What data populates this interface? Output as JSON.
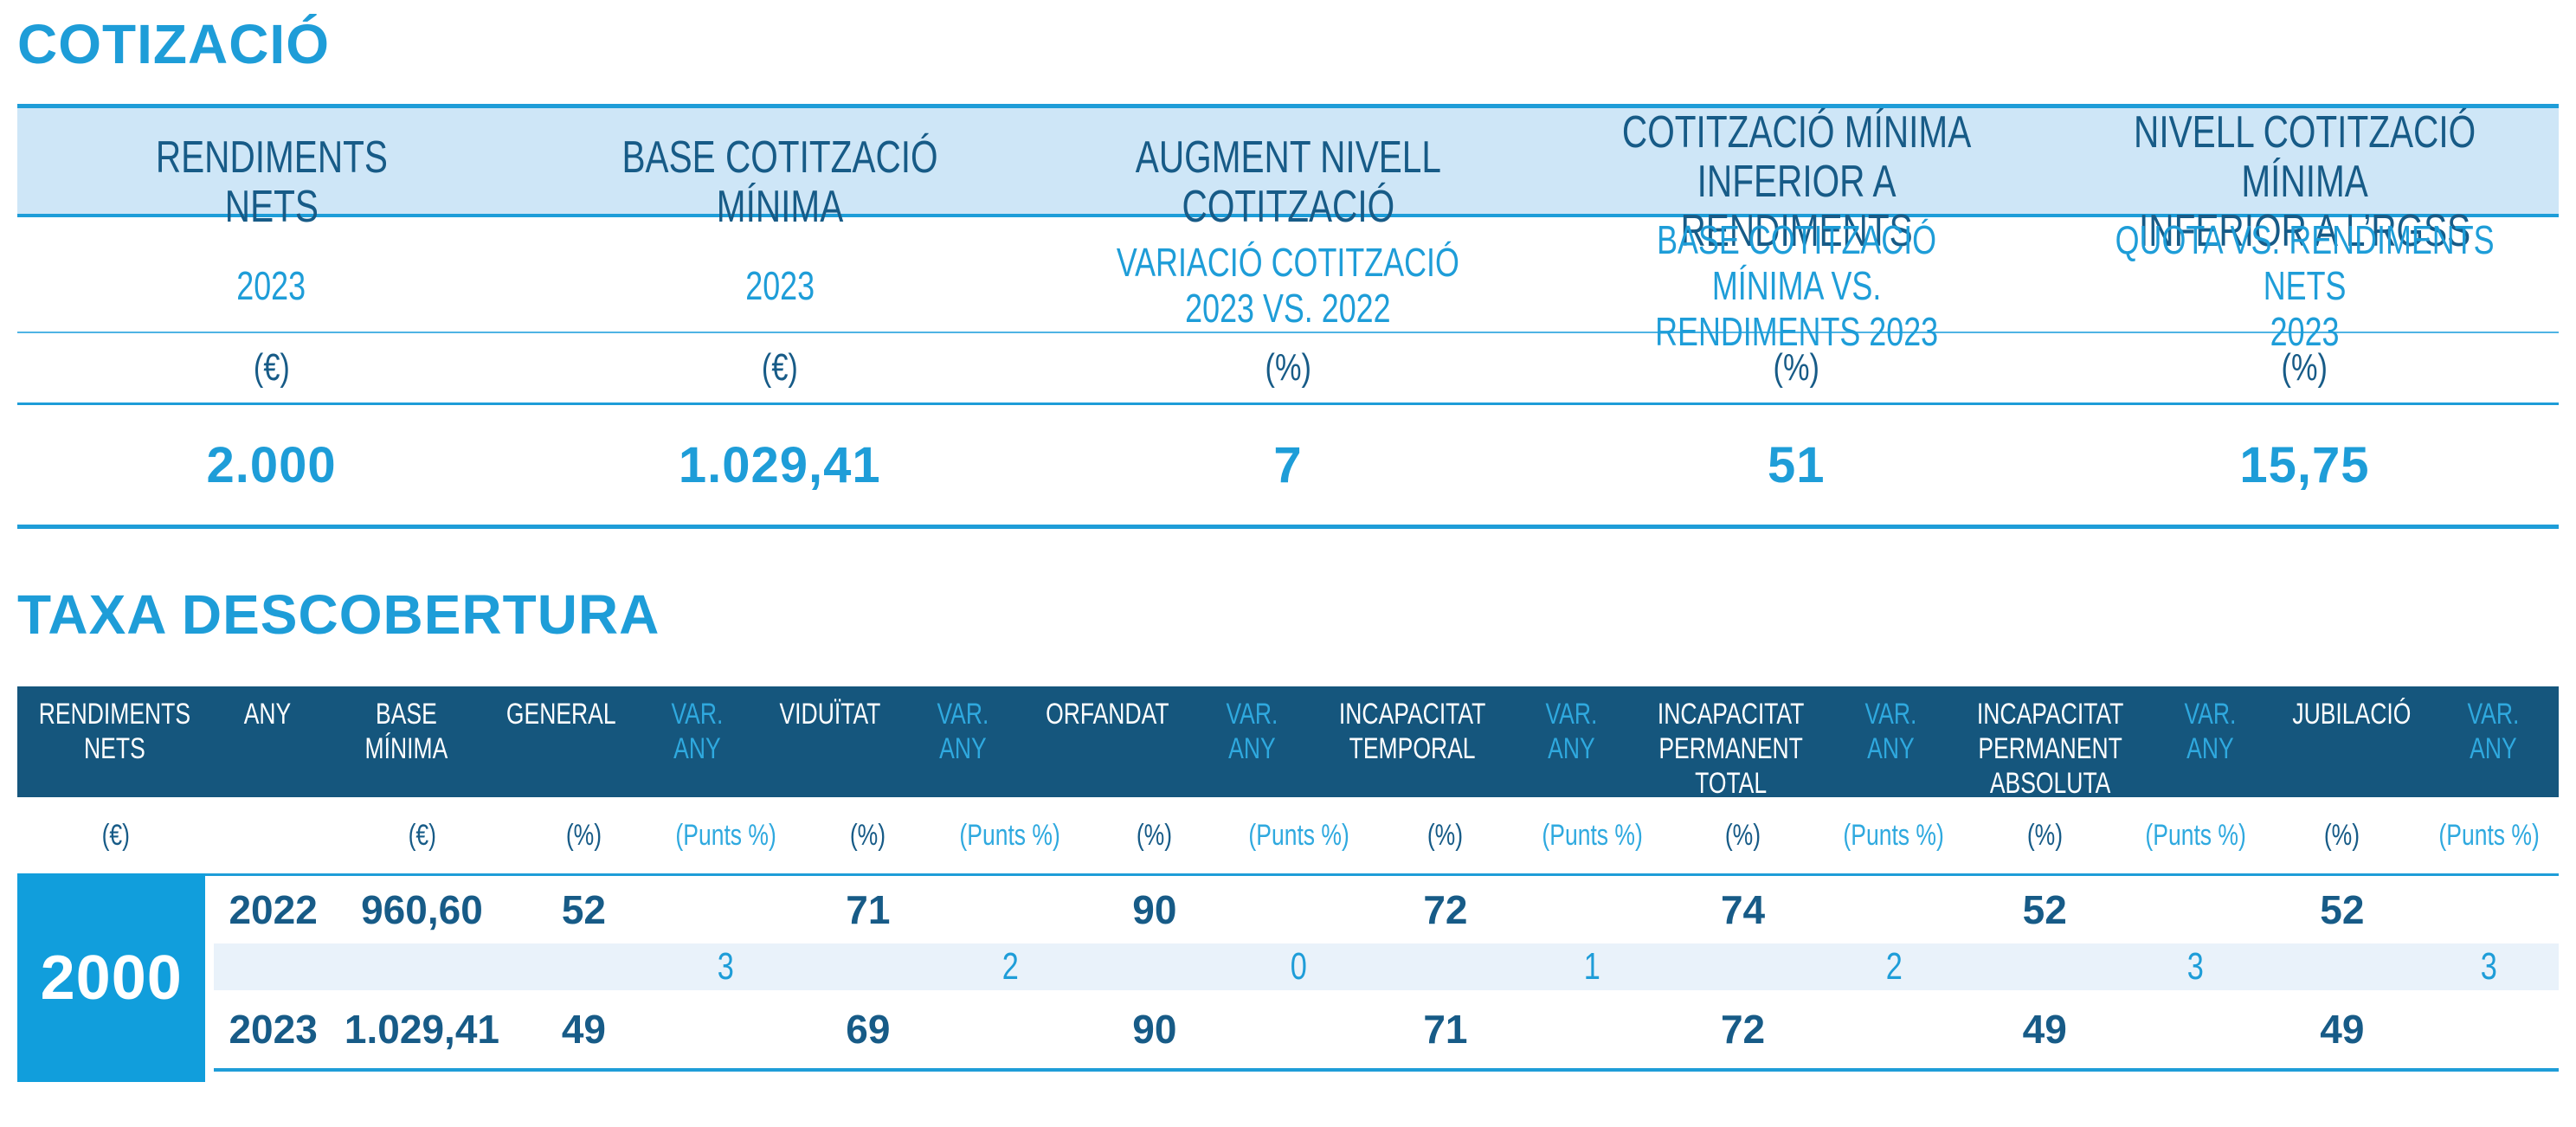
{
  "colors": {
    "accent": "#1E9DD8",
    "accent_light": "#2FA9DF",
    "navy": "#175B87",
    "header_band_bg": "#CEE6F7",
    "dark_band_bg": "#15567D",
    "pale_row_bg": "#E9F2FA",
    "row_label_bg": "#119EDC"
  },
  "cotizacio": {
    "title": "COTIZACIÓ",
    "columns": [
      {
        "header": "RENDIMENTS\nNETS",
        "subheader": "2023",
        "unit": "(€)",
        "value": "2.000"
      },
      {
        "header": "BASE COTITZACIÓ\nMÍNIMA",
        "subheader": "2023",
        "unit": "(€)",
        "value": "1.029,41"
      },
      {
        "header": "AUGMENT NIVELL\nCOTITZACIÓ",
        "subheader": "VARIACIÓ COTITZACIÓ\n2023 VS. 2022",
        "unit": "(%)",
        "value": "7"
      },
      {
        "header": "COTITZACIÓ MÍNIMA INFERIOR A\nRENDIMENTS",
        "subheader": "BASE COTITZACIÓ MÍNIMA VS.\nRENDIMENTS 2023",
        "unit": "(%)",
        "value": "51"
      },
      {
        "header": "NIVELL COTITZACIÓ MÍNIMA\nINFERIOR A L’RGSS",
        "subheader": "QUOTA VS. RENDIMENTS NETS\n2023",
        "unit": "(%)",
        "value": "15,75"
      }
    ]
  },
  "taxa": {
    "title": "TAXA DESCOBERTURA",
    "columns": [
      {
        "label": "RENDIMENTS\nNETS",
        "unit": "(€)"
      },
      {
        "label": "ANY",
        "unit": ""
      },
      {
        "label": "BASE\nMÍNIMA",
        "unit": "(€)"
      },
      {
        "label": "GENERAL",
        "unit": "(%)"
      },
      {
        "label": "VAR.\nANY",
        "unit": "(Punts %)"
      },
      {
        "label": "VIDUÏTAT",
        "unit": "(%)"
      },
      {
        "label": "VAR.\nANY",
        "unit": "(Punts %)"
      },
      {
        "label": "ORFANDAT",
        "unit": "(%)"
      },
      {
        "label": "VAR.\nANY",
        "unit": "(Punts %)"
      },
      {
        "label": "INCAPACITAT\nTEMPORAL",
        "unit": "(%)"
      },
      {
        "label": "VAR.\nANY",
        "unit": "(Punts %)"
      },
      {
        "label": "INCAPACITAT\nPERMANENT\nTOTAL",
        "unit": "(%)"
      },
      {
        "label": "VAR.\nANY",
        "unit": "(Punts %)"
      },
      {
        "label": "INCAPACITAT\nPERMANENT\nABSOLUTA",
        "unit": "(%)"
      },
      {
        "label": "VAR.\nANY",
        "unit": "(Punts %)"
      },
      {
        "label": "JUBILACIÓ",
        "unit": "(%)"
      },
      {
        "label": "VAR.\nANY",
        "unit": "(Punts %)"
      }
    ],
    "row_label": "2000",
    "rows": [
      {
        "any": "2022",
        "values": [
          "960,60",
          "52",
          "",
          "71",
          "",
          "90",
          "",
          "72",
          "",
          "74",
          "",
          "52",
          "",
          "52",
          ""
        ]
      },
      {
        "any": "",
        "values": [
          "",
          "",
          "3",
          "",
          "2",
          "",
          "0",
          "",
          "1",
          "",
          "2",
          "",
          "3",
          "",
          "3"
        ]
      },
      {
        "any": "2023",
        "values": [
          "1.029,41",
          "49",
          "",
          "69",
          "",
          "90",
          "",
          "71",
          "",
          "72",
          "",
          "49",
          "",
          "49",
          ""
        ]
      }
    ]
  }
}
